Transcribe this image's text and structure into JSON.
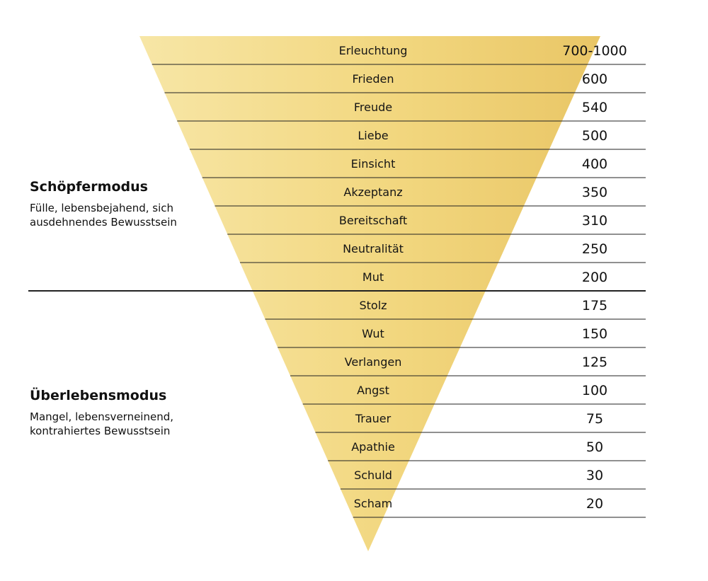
{
  "fill_color_light": "#f7e6a6",
  "fill_color_mid": "#f2d77f",
  "fill_color_dark": "#e9c666",
  "line_color": "#222222",
  "levels": [
    {
      "name": "Erleuchtung",
      "value": "700-1000"
    },
    {
      "name": "Frieden",
      "value": "600"
    },
    {
      "name": "Freude",
      "value": "540"
    },
    {
      "name": "Liebe",
      "value": "500"
    },
    {
      "name": "Einsicht",
      "value": "400"
    },
    {
      "name": "Akzeptanz",
      "value": "350"
    },
    {
      "name": "Bereitschaft",
      "value": "310"
    },
    {
      "name": "Neutralität",
      "value": "250"
    },
    {
      "name": "Mut",
      "value": "200"
    },
    {
      "name": "Stolz",
      "value": "175"
    },
    {
      "name": "Wut",
      "value": "150"
    },
    {
      "name": "Verlangen",
      "value": "125"
    },
    {
      "name": "Angst",
      "value": "100"
    },
    {
      "name": "Trauer",
      "value": "75"
    },
    {
      "name": "Apathie",
      "value": "50"
    },
    {
      "name": "Schuld",
      "value": "30"
    },
    {
      "name": "Scham",
      "value": "20"
    }
  ],
  "creator_mode": {
    "title": "Schöpfermodus",
    "desc_line1": "Fülle, lebensbejahend, sich",
    "desc_line2": "ausdehnendes Bewusstsein"
  },
  "survival_mode": {
    "title": "Überlebensmodus",
    "desc_line1": "Mangel, lebensverneinend,",
    "desc_line2": "kontrahiertes Bewusstsein"
  }
}
